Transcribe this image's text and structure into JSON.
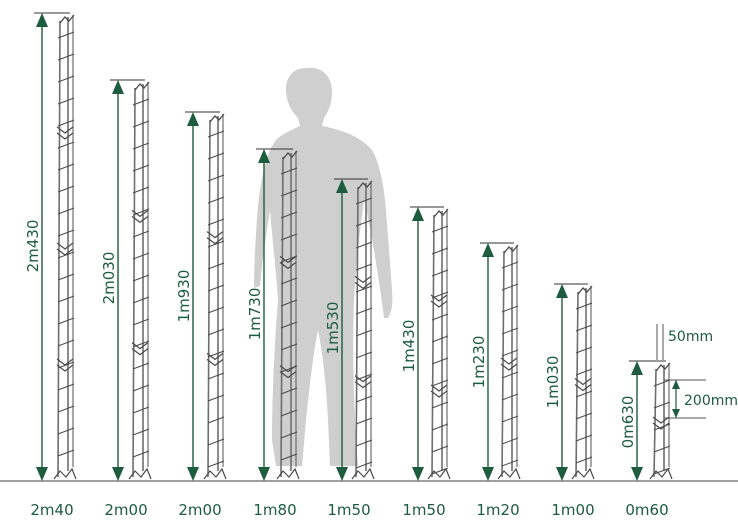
{
  "colors": {
    "arrow": "#1d5c3f",
    "text": "#1d5c3f",
    "post": "#6e6e6e",
    "wire": "#4a4a4a",
    "person": "#cfcfcf",
    "ground": "#666666"
  },
  "panels": [
    {
      "height_label": "2m430",
      "size_label": "2m40"
    },
    {
      "height_label": "2m030",
      "size_label": "2m00"
    },
    {
      "height_label": "1m930",
      "size_label": "2m00"
    },
    {
      "height_label": "1m730",
      "size_label": "1m80"
    },
    {
      "height_label": "1m530",
      "size_label": "1m50"
    },
    {
      "height_label": "1m430",
      "size_label": "1m50"
    },
    {
      "height_label": "1m230",
      "size_label": "1m20"
    },
    {
      "height_label": "1m030",
      "size_label": "1m00"
    },
    {
      "height_label": "0m630",
      "size_label": "0m60"
    }
  ],
  "detail": {
    "wire_spacing": "50mm",
    "mesh_height": "200mm"
  },
  "person_icon": "person-silhouette"
}
